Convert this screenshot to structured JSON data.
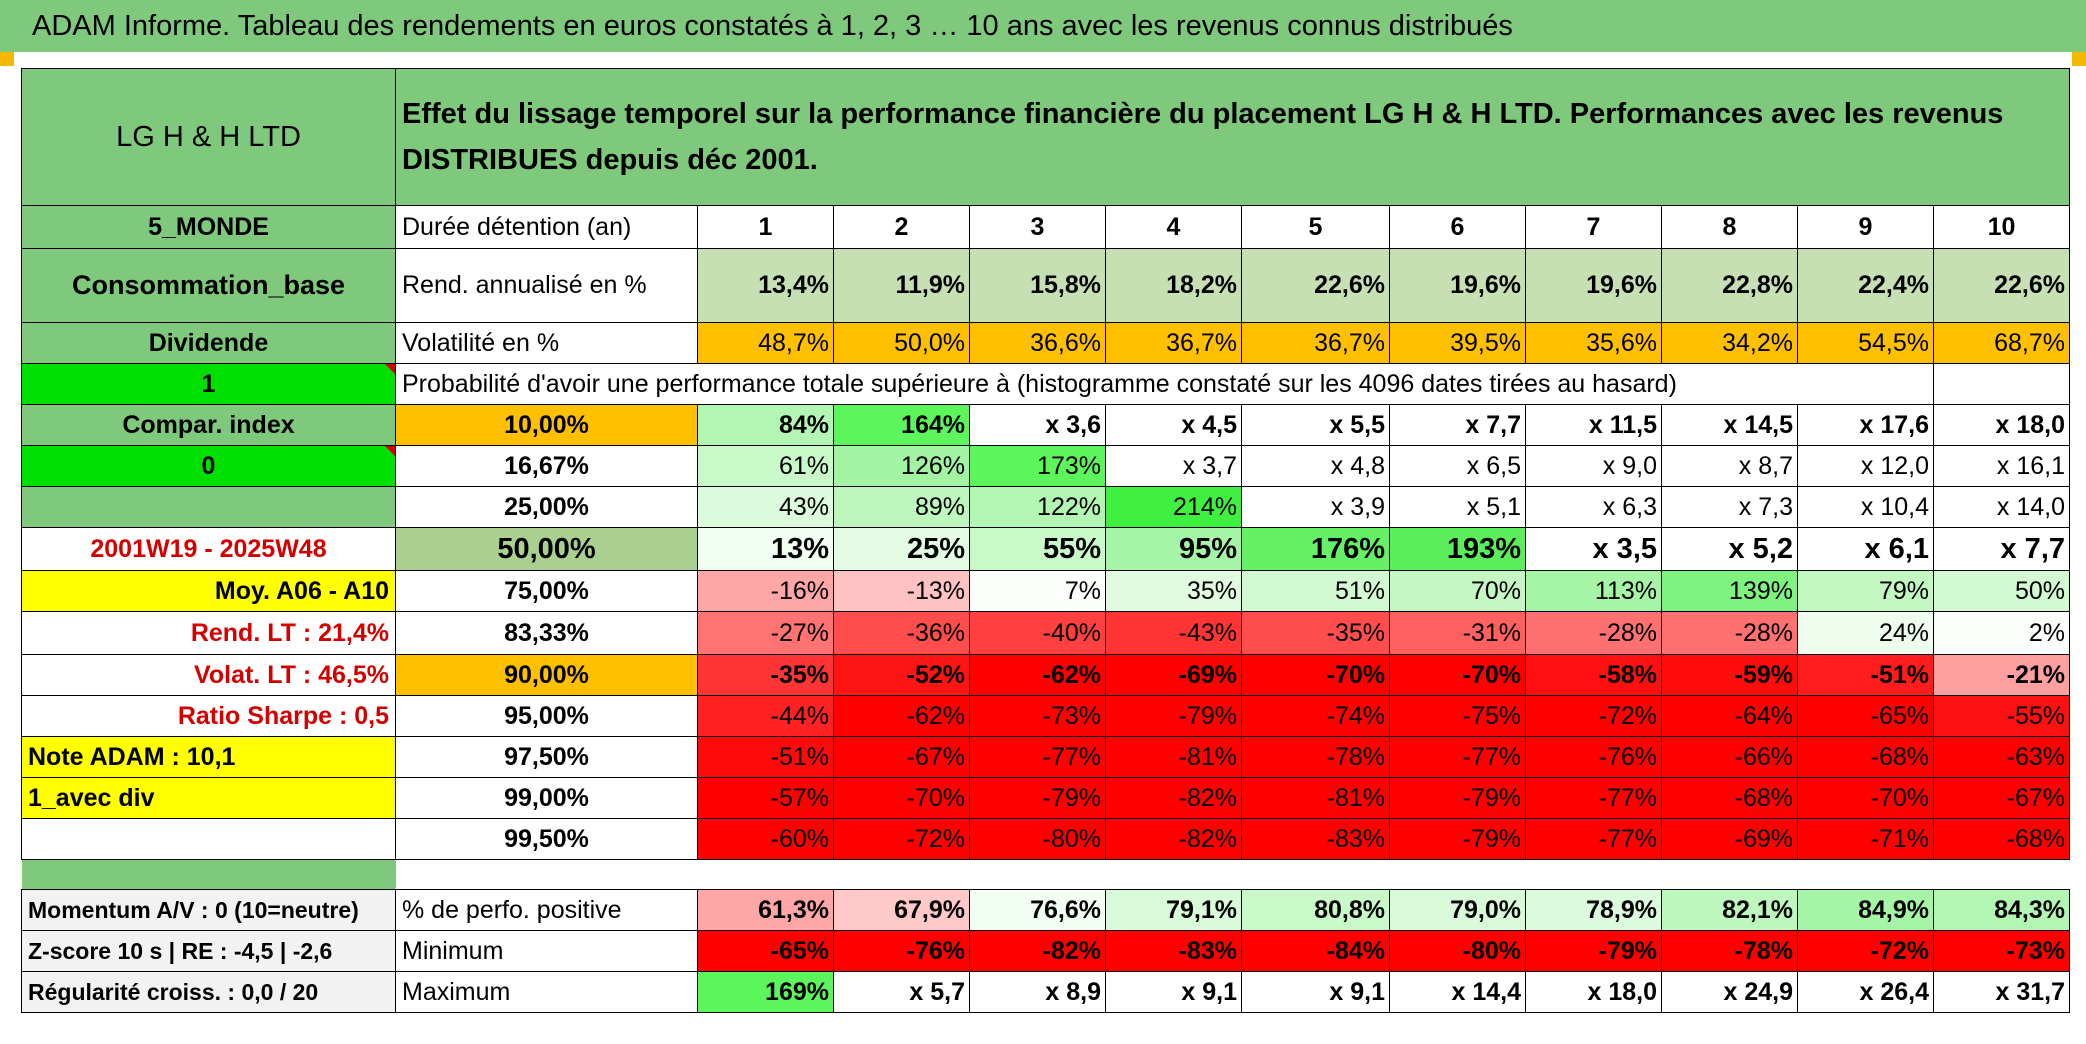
{
  "title": "ADAM Informe. Tableau des rendements en euros constatés à 1, 2, 3 … 10 ans avec les revenus connus distribués",
  "left": {
    "fund": "LG H & H LTD",
    "category": "5_MONDE",
    "sector": "Consommation_base",
    "dividend": "Dividende",
    "one": "1",
    "compar": "Compar. index",
    "zero": "0",
    "period": "2001W19 - 2025W48",
    "moy": "Moy. A06 - A10",
    "rend_lt": "Rend. LT :   21,4%",
    "volat_lt": "Volat. LT :   46,5%",
    "sharpe": "Ratio Sharpe :   0,5",
    "note": "Note ADAM : 10,1",
    "avec_div": "1_avec div"
  },
  "header_text": "Effet du lissage temporel sur la performance financière du placement LG H & H LTD. Performances avec les revenus DISTRIBUES depuis déc 2001.",
  "labels": {
    "duree": "Durée détention (an)",
    "rend": "Rend. annualisé en %",
    "vol": "Volatilité en %",
    "prob": "Probabilité d'avoir une performance totale supérieure à (histogramme constaté sur les 4096 dates tirées au hasard)"
  },
  "years": [
    "1",
    "2",
    "3",
    "4",
    "5",
    "6",
    "7",
    "8",
    "9",
    "10"
  ],
  "rend": [
    "13,4%",
    "11,9%",
    "15,8%",
    "18,2%",
    "22,6%",
    "19,6%",
    "19,6%",
    "22,8%",
    "22,4%",
    "22,6%"
  ],
  "vol": [
    "48,7%",
    "50,0%",
    "36,6%",
    "36,7%",
    "36,7%",
    "39,5%",
    "35,6%",
    "34,2%",
    "54,5%",
    "68,7%"
  ],
  "quantiles": [
    {
      "p": "10,00%",
      "vals": [
        "84%",
        "164%",
        "x 3,6",
        "x 4,5",
        "x 5,5",
        "x 7,7",
        "x 11,5",
        "x 14,5",
        "x 17,6",
        "x 18,0"
      ]
    },
    {
      "p": "16,67%",
      "vals": [
        "61%",
        "126%",
        "173%",
        "x 3,7",
        "x 4,8",
        "x 6,5",
        "x 9,0",
        "x 8,7",
        "x 12,0",
        "x 16,1"
      ]
    },
    {
      "p": "25,00%",
      "vals": [
        "43%",
        "89%",
        "122%",
        "214%",
        "x 3,9",
        "x 5,1",
        "x 6,3",
        "x 7,3",
        "x 10,4",
        "x 14,0"
      ]
    },
    {
      "p": "50,00%",
      "vals": [
        "13%",
        "25%",
        "55%",
        "95%",
        "176%",
        "193%",
        "x 3,5",
        "x 5,2",
        "x 6,1",
        "x 7,7"
      ]
    },
    {
      "p": "75,00%",
      "vals": [
        "-16%",
        "-13%",
        "7%",
        "35%",
        "51%",
        "70%",
        "113%",
        "139%",
        "79%",
        "50%"
      ]
    },
    {
      "p": "83,33%",
      "vals": [
        "-27%",
        "-36%",
        "-40%",
        "-43%",
        "-35%",
        "-31%",
        "-28%",
        "-28%",
        "24%",
        "2%"
      ]
    },
    {
      "p": "90,00%",
      "vals": [
        "-35%",
        "-52%",
        "-62%",
        "-69%",
        "-70%",
        "-70%",
        "-58%",
        "-59%",
        "-51%",
        "-21%"
      ]
    },
    {
      "p": "95,00%",
      "vals": [
        "-44%",
        "-62%",
        "-73%",
        "-79%",
        "-74%",
        "-75%",
        "-72%",
        "-64%",
        "-65%",
        "-55%"
      ]
    },
    {
      "p": "97,50%",
      "vals": [
        "-51%",
        "-67%",
        "-77%",
        "-81%",
        "-78%",
        "-77%",
        "-76%",
        "-66%",
        "-68%",
        "-63%"
      ]
    },
    {
      "p": "99,00%",
      "vals": [
        "-57%",
        "-70%",
        "-79%",
        "-82%",
        "-81%",
        "-79%",
        "-77%",
        "-68%",
        "-70%",
        "-67%"
      ]
    },
    {
      "p": "99,50%",
      "vals": [
        "-60%",
        "-72%",
        "-80%",
        "-82%",
        "-83%",
        "-79%",
        "-77%",
        "-69%",
        "-71%",
        "-68%"
      ]
    }
  ],
  "quantile_colors": [
    [
      "#b3f5b3",
      "#5cf55c",
      "#ffffff",
      "#ffffff",
      "#ffffff",
      "#ffffff",
      "#ffffff",
      "#ffffff",
      "#ffffff",
      "#ffffff"
    ],
    [
      "#c9f8c9",
      "#a2f3a2",
      "#5cf55c",
      "#ffffff",
      "#ffffff",
      "#ffffff",
      "#ffffff",
      "#ffffff",
      "#ffffff",
      "#ffffff"
    ],
    [
      "#dcfbdc",
      "#bdf7bd",
      "#b3f5b3",
      "#40f040",
      "#ffffff",
      "#ffffff",
      "#ffffff",
      "#ffffff",
      "#ffffff",
      "#ffffff"
    ],
    [
      "#f2fef2",
      "#e2fbe2",
      "#c9f8c9",
      "#a6f4a6",
      "#66f066",
      "#5ced5c",
      "#ffffff",
      "#ffffff",
      "#ffffff",
      "#ffffff"
    ],
    [
      "#ffa6a6",
      "#ffc2c2",
      "#fcfffc",
      "#e0fbe0",
      "#d2f9d2",
      "#c4f7c4",
      "#a6f4a6",
      "#7ff27f",
      "#c2f7c2",
      "#d2f9d2"
    ],
    [
      "#ff7373",
      "#ff4d4d",
      "#ff4040",
      "#ff3535",
      "#ff4d4d",
      "#ff6060",
      "#ff7070",
      "#ff7070",
      "#eefdee",
      "#fdfffd"
    ],
    [
      "#ff3535",
      "#ff1414",
      "#ff0000",
      "#ff0000",
      "#ff0000",
      "#ff0000",
      "#ff0f0f",
      "#ff0c0c",
      "#ff1c1c",
      "#ffa0a0"
    ],
    [
      "#ff2222",
      "#ff0000",
      "#ff0000",
      "#ff0000",
      "#ff0000",
      "#ff0000",
      "#ff0000",
      "#ff0000",
      "#ff0000",
      "#ff1010"
    ],
    [
      "#ff0a0a",
      "#ff0000",
      "#ff0000",
      "#ff0000",
      "#ff0000",
      "#ff0000",
      "#ff0000",
      "#ff0000",
      "#ff0000",
      "#ff0000"
    ],
    [
      "#ff0000",
      "#ff0000",
      "#ff0000",
      "#ff0000",
      "#ff0000",
      "#ff0000",
      "#ff0000",
      "#ff0000",
      "#ff0000",
      "#ff0000"
    ],
    [
      "#ff0000",
      "#ff0000",
      "#ff0000",
      "#ff0000",
      "#ff0000",
      "#ff0000",
      "#ff0000",
      "#ff0000",
      "#ff0000",
      "#ff0000"
    ]
  ],
  "bottom": {
    "momentum": "Momentum A/V : 0 (10=neutre)",
    "zscore": "Z-score 10 s | RE : -4,5 | -2,6",
    "regularite": "Régularité croiss. : 0,0 / 20",
    "pos_label": "% de perfo. positive",
    "min_label": "Minimum",
    "max_label": "Maximum",
    "pos": [
      "61,3%",
      "67,9%",
      "76,6%",
      "79,1%",
      "80,8%",
      "79,0%",
      "78,9%",
      "82,1%",
      "84,9%",
      "84,3%"
    ],
    "min": [
      "-65%",
      "-76%",
      "-82%",
      "-83%",
      "-84%",
      "-80%",
      "-79%",
      "-78%",
      "-72%",
      "-73%"
    ],
    "max": [
      "169%",
      "x 5,7",
      "x 8,9",
      "x 9,1",
      "x 9,1",
      "x 14,4",
      "x 18,0",
      "x 24,9",
      "x 26,4",
      "x 31,7"
    ]
  },
  "colors": {
    "header_green": "#7ec97c",
    "rend_green": "#c6e0b4",
    "vol_orange": "#ffc000",
    "bright_green": "#00e000",
    "yellow": "#ffff00",
    "median_green": "#a9d08e",
    "pos_colors": [
      "#ffa6a6",
      "#ffc9c9",
      "#f2fef2",
      "#d9fad9",
      "#c9f8c9",
      "#d9fad9",
      "#dcfbdc",
      "#bdf7bd",
      "#a6f4a6",
      "#b3f5b3"
    ],
    "min_red": "#ff0000",
    "max_first": "#5cf55c"
  }
}
